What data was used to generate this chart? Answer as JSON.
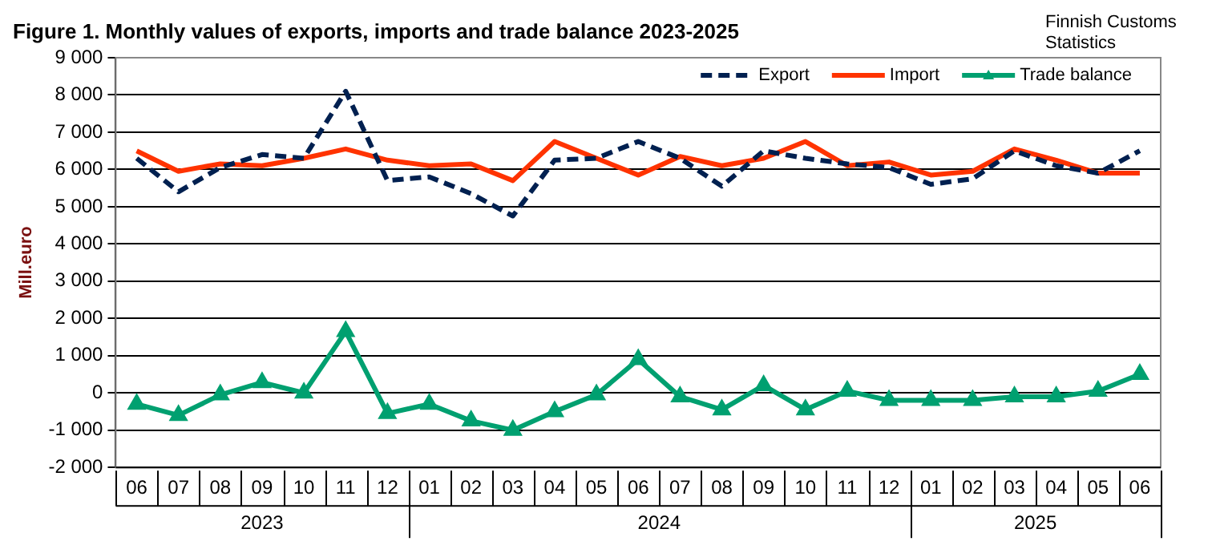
{
  "chart_data": {
    "type": "line",
    "title": "Figure 1. Monthly values of exports, imports and trade balance 2023-2025",
    "ylabel": "Mill.euro",
    "annotations": [
      "Finnish Customs\nStatistics",
      "2023",
      "2024",
      "2025"
    ],
    "categories": [
      "06",
      "07",
      "08",
      "09",
      "10",
      "11",
      "12",
      "01",
      "02",
      "03",
      "04",
      "05",
      "06",
      "07",
      "08",
      "09",
      "10",
      "11",
      "12",
      "01",
      "02",
      "03",
      "04",
      "05",
      "06"
    ],
    "series": [
      {
        "name": "Export",
        "color": "#002050",
        "line_style": "dashed",
        "marker": "none",
        "values": [
          6300,
          5400,
          6050,
          6400,
          6300,
          8100,
          5700,
          5800,
          5350,
          4750,
          6250,
          6300,
          6750,
          6300,
          5550,
          6500,
          6300,
          6150,
          6050,
          5600,
          5750,
          6500,
          6100,
          5900,
          6500
        ]
      },
      {
        "name": "Import",
        "color": "#ff3300",
        "line_style": "solid",
        "marker": "none",
        "values": [
          6500,
          5950,
          6150,
          6100,
          6300,
          6550,
          6250,
          6100,
          6150,
          5700,
          6750,
          6300,
          5850,
          6350,
          6100,
          6300,
          6750,
          6100,
          6200,
          5850,
          5950,
          6550,
          6250,
          5900,
          5900
        ]
      },
      {
        "name": "Trade balance",
        "color": "#00a070",
        "line_style": "solid",
        "marker": "triangle",
        "values": [
          -300,
          -600,
          -50,
          280,
          0,
          1650,
          -550,
          -300,
          -750,
          -1000,
          -500,
          -50,
          900,
          -100,
          -450,
          200,
          -450,
          50,
          -200,
          -200,
          -200,
          -100,
          -100,
          50,
          500
        ]
      }
    ],
    "ylim": [
      -2000,
      9000
    ],
    "yticks": [
      {
        "value": -2000,
        "label": "-2 000"
      },
      {
        "value": -1000,
        "label": "-1 000"
      },
      0,
      {
        "value": 1000,
        "label": "1 000"
      },
      {
        "value": 2000,
        "label": "2 000"
      },
      {
        "value": 3000,
        "label": "3 000"
      },
      {
        "value": 4000,
        "label": "4 000"
      },
      {
        "value": 5000,
        "label": "5 000"
      },
      {
        "value": 6000,
        "label": "6 000"
      },
      {
        "value": 7000,
        "label": "7 000"
      },
      {
        "value": 8000,
        "label": "8 000"
      },
      {
        "value": 9000,
        "label": "9 000"
      }
    ],
    "grid": "y",
    "legend": "top right"
  }
}
